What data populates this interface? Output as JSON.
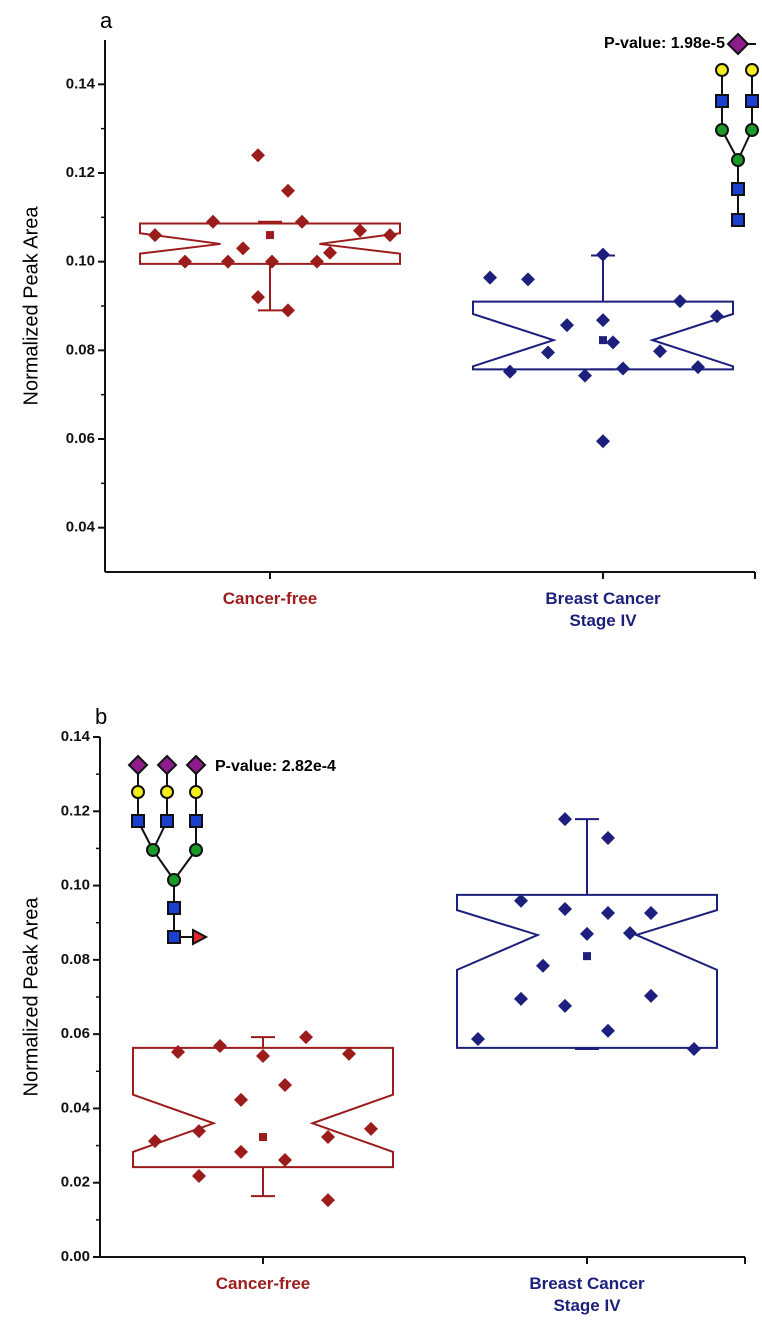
{
  "chart_data": [
    {
      "type": "box",
      "label": "a",
      "annotation": "P-value: 1.98e-5",
      "y_label": "Normalized Peak Area",
      "categories": [
        "Cancer-free",
        "Breast Cancer\nStage IV"
      ],
      "ylim": [
        0.03,
        0.15
      ],
      "yticks": [
        0.04,
        0.06,
        0.08,
        {
          "value": 0.1,
          "label": "0.10"
        },
        0.12,
        0.14
      ],
      "groups": [
        {
          "color": "#9c1c1c",
          "values": [
            0.124,
            0.116,
            0.109,
            0.109,
            0.106,
            0.103,
            0.107,
            0.106,
            0.102,
            0.1,
            0.1,
            0.1,
            0.1,
            0.092,
            0.089
          ],
          "q1": 0.0995,
          "q3": 0.1086,
          "median": 0.104,
          "notch_low": 0.1018,
          "notch_high": 0.1064,
          "whisker_low": 0.089,
          "whisker_high": 0.109,
          "mean": 0.106
        },
        {
          "color": "#1c1f7c",
          "values": [
            0.0964,
            0.096,
            0.1016,
            0.0857,
            0.0868,
            0.0911,
            0.0877,
            0.0795,
            0.0752,
            0.0743,
            0.0759,
            0.0818,
            0.0798,
            0.0762,
            0.0595
          ],
          "q1": 0.0757,
          "q3": 0.091,
          "median": 0.0823,
          "notch_low": 0.0764,
          "notch_high": 0.0882,
          "whisker_low": 0.0757,
          "whisker_high": 0.1014,
          "mean": 0.0823
        }
      ]
    },
    {
      "type": "box",
      "label": "b",
      "annotation": "P-value: 2.82e-4",
      "y_label": "Normalized Peak Area",
      "categories": [
        "Cancer-free",
        "Breast Cancer\nStage IV"
      ],
      "ylim": [
        0,
        0.14
      ],
      "yticks": [
        {
          "value": 0,
          "label": "0.00"
        },
        0.02,
        0.04,
        0.06,
        0.08,
        {
          "value": 0.1,
          "label": "0.10"
        },
        0.12,
        0.14
      ],
      "groups": [
        {
          "color": "#9c1c1c",
          "values": [
            0.0592,
            0.0552,
            0.0568,
            0.0541,
            0.0547,
            0.0463,
            0.0423,
            0.0339,
            0.0312,
            0.0323,
            0.0345,
            0.0283,
            0.0261,
            0.0218,
            0.0153
          ],
          "q1": 0.0242,
          "q3": 0.0563,
          "median": 0.036,
          "notch_low": 0.0283,
          "notch_high": 0.0437,
          "whisker_low": 0.0164,
          "whisker_high": 0.0592,
          "mean": 0.0323
        },
        {
          "color": "#1c1f7c",
          "values": [
            0.1179,
            0.1128,
            0.0959,
            0.0937,
            0.0926,
            0.0926,
            0.0872,
            0.087,
            0.0784,
            0.0695,
            0.0676,
            0.0703,
            0.0609,
            0.0587,
            0.056
          ],
          "q1": 0.0563,
          "q3": 0.0975,
          "median": 0.0867,
          "notch_low": 0.0773,
          "notch_high": 0.0934,
          "whisker_low": 0.056,
          "whisker_high": 0.1179,
          "mean": 0.081
        }
      ]
    }
  ]
}
